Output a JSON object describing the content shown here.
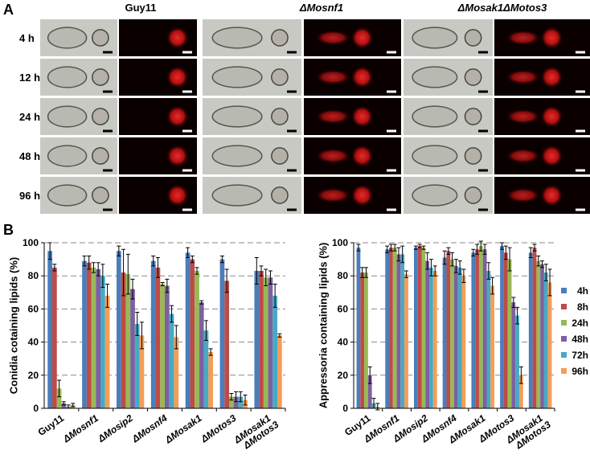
{
  "panel_a": {
    "label": "A",
    "columns": [
      "Guy11",
      "ΔMosnf1",
      "ΔMosak1ΔMotos3"
    ],
    "rows": [
      "4 h",
      "12 h",
      "24 h",
      "48 h",
      "96 h"
    ]
  },
  "panel_b_label": "B",
  "chart_data": [
    {
      "type": "bar",
      "ylabel": "Conidia cotaining lipids (%)",
      "categories": [
        "Guy11",
        "ΔMosnf1",
        "ΔMosip2",
        "ΔMosnf4",
        "ΔMosak1",
        "ΔMotos3",
        [
          "ΔMosak1",
          "ΔMotos3"
        ]
      ],
      "series": [
        {
          "color": "#4a7ebb",
          "values": [
            95,
            89,
            95,
            89,
            94,
            90,
            83
          ],
          "errors": [
            5,
            3,
            3,
            3,
            3,
            2,
            8
          ]
        },
        {
          "color": "#be4b48",
          "values": [
            85,
            88,
            82,
            85,
            90,
            77,
            83
          ],
          "errors": [
            2,
            4,
            14,
            6,
            2,
            7,
            3
          ]
        },
        {
          "color": "#98b954",
          "values": [
            12,
            85,
            81,
            75,
            83,
            7,
            79
          ],
          "errors": [
            5,
            3,
            12,
            1,
            2,
            2,
            5
          ]
        },
        {
          "color": "#7d60a0",
          "values": [
            3,
            84,
            72,
            74,
            64,
            7,
            79
          ],
          "errors": [
            1,
            4,
            6,
            4,
            1,
            3,
            4
          ]
        },
        {
          "color": "#46aac5",
          "values": [
            1,
            80,
            51,
            57,
            47,
            7,
            68
          ],
          "errors": [
            1,
            7,
            7,
            5,
            6,
            3,
            7
          ]
        },
        {
          "color": "#f59d56",
          "values": [
            2,
            68,
            44,
            43,
            34,
            5,
            44
          ],
          "errors": [
            1,
            7,
            8,
            7,
            2,
            3,
            1
          ]
        }
      ],
      "ylim": [
        0,
        100
      ],
      "yticks": [
        0,
        20,
        40,
        60,
        80,
        100
      ],
      "grid": true,
      "legend": false
    },
    {
      "type": "bar",
      "ylabel": "Appressoria containing lipids (%)",
      "categories": [
        "Guy11",
        "ΔMosnf1",
        "ΔMosip2",
        "ΔMosnf4",
        "ΔMosak1",
        "ΔMotos3",
        [
          "ΔMosak1",
          "ΔMotos3"
        ]
      ],
      "series": [
        {
          "name": "4h",
          "color": "#4a7ebb",
          "values": [
            97,
            96,
            97,
            91,
            94,
            98,
            94
          ],
          "errors": [
            2,
            2,
            1,
            4,
            2,
            2,
            3
          ]
        },
        {
          "name": "8h",
          "color": "#be4b48",
          "values": [
            82,
            97,
            98,
            95,
            96,
            94,
            97
          ],
          "errors": [
            3,
            2,
            1,
            2,
            3,
            4,
            2
          ]
        },
        {
          "name": "24h",
          "color": "#98b954",
          "values": [
            82,
            97,
            97,
            90,
            98,
            90,
            89
          ],
          "errors": [
            3,
            2,
            1,
            4,
            3,
            7,
            3
          ]
        },
        {
          "name": "48h",
          "color": "#7d60a0",
          "values": [
            20,
            93,
            89,
            86,
            96,
            64,
            87
          ],
          "errors": [
            5,
            4,
            5,
            4,
            3,
            3,
            2
          ]
        },
        {
          "name": "72h",
          "color": "#46aac5",
          "values": [
            3,
            93,
            85,
            85,
            83,
            56,
            82
          ],
          "errors": [
            3,
            5,
            5,
            4,
            5,
            5,
            5
          ]
        },
        {
          "name": "96h",
          "color": "#f59d56",
          "values": [
            1,
            81,
            83,
            80,
            74,
            20,
            76
          ],
          "errors": [
            2,
            2,
            3,
            4,
            5,
            5,
            8
          ]
        }
      ],
      "ylim": [
        0,
        100
      ],
      "yticks": [
        0,
        20,
        40,
        60,
        80,
        100
      ],
      "grid": true,
      "legend": "right"
    }
  ]
}
